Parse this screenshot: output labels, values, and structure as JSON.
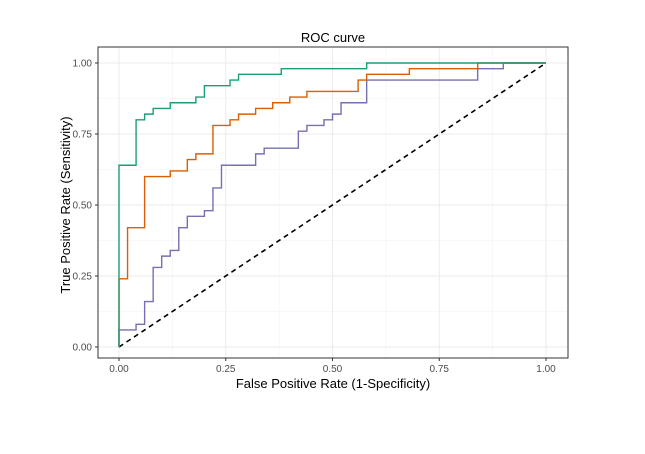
{
  "chart_data": {
    "type": "line",
    "title": "ROC curve",
    "xlabel": "False Positive Rate (1-Specificity)",
    "ylabel": "True Positive Rate (Sensitivity)",
    "xlim": [
      0,
      1
    ],
    "ylim": [
      0,
      1
    ],
    "x_ticks": [
      "0.00",
      "0.25",
      "0.50",
      "0.75",
      "1.00"
    ],
    "y_ticks": [
      "0.00",
      "0.25",
      "0.50",
      "0.75",
      "1.00"
    ],
    "grid": true,
    "legend": "none",
    "series": [
      {
        "color": "#1b9e77",
        "points": [
          [
            0,
            0
          ],
          [
            0,
            0.64
          ],
          [
            0.04,
            0.64
          ],
          [
            0.04,
            0.8
          ],
          [
            0.06,
            0.8
          ],
          [
            0.06,
            0.82
          ],
          [
            0.08,
            0.82
          ],
          [
            0.08,
            0.84
          ],
          [
            0.12,
            0.84
          ],
          [
            0.12,
            0.86
          ],
          [
            0.18,
            0.86
          ],
          [
            0.18,
            0.88
          ],
          [
            0.2,
            0.88
          ],
          [
            0.2,
            0.92
          ],
          [
            0.26,
            0.92
          ],
          [
            0.26,
            0.94
          ],
          [
            0.28,
            0.94
          ],
          [
            0.28,
            0.96
          ],
          [
            0.38,
            0.96
          ],
          [
            0.38,
            0.98
          ],
          [
            0.58,
            0.98
          ],
          [
            0.58,
            1.0
          ],
          [
            1.0,
            1.0
          ]
        ]
      },
      {
        "color": "#d95f02",
        "points": [
          [
            0,
            0
          ],
          [
            0,
            0.24
          ],
          [
            0.02,
            0.24
          ],
          [
            0.02,
            0.42
          ],
          [
            0.06,
            0.42
          ],
          [
            0.06,
            0.6
          ],
          [
            0.12,
            0.6
          ],
          [
            0.12,
            0.62
          ],
          [
            0.16,
            0.62
          ],
          [
            0.16,
            0.66
          ],
          [
            0.18,
            0.66
          ],
          [
            0.18,
            0.68
          ],
          [
            0.22,
            0.68
          ],
          [
            0.22,
            0.78
          ],
          [
            0.26,
            0.78
          ],
          [
            0.26,
            0.8
          ],
          [
            0.28,
            0.8
          ],
          [
            0.28,
            0.82
          ],
          [
            0.32,
            0.82
          ],
          [
            0.32,
            0.84
          ],
          [
            0.36,
            0.84
          ],
          [
            0.36,
            0.86
          ],
          [
            0.4,
            0.86
          ],
          [
            0.4,
            0.88
          ],
          [
            0.44,
            0.88
          ],
          [
            0.44,
            0.9
          ],
          [
            0.56,
            0.9
          ],
          [
            0.56,
            0.94
          ],
          [
            0.58,
            0.94
          ],
          [
            0.58,
            0.96
          ],
          [
            0.68,
            0.96
          ],
          [
            0.68,
            0.98
          ],
          [
            0.84,
            0.98
          ],
          [
            0.84,
            1.0
          ],
          [
            1.0,
            1.0
          ]
        ]
      },
      {
        "color": "#7570b3",
        "points": [
          [
            0,
            0
          ],
          [
            0,
            0.06
          ],
          [
            0.04,
            0.06
          ],
          [
            0.04,
            0.08
          ],
          [
            0.06,
            0.08
          ],
          [
            0.06,
            0.16
          ],
          [
            0.08,
            0.16
          ],
          [
            0.08,
            0.28
          ],
          [
            0.1,
            0.28
          ],
          [
            0.1,
            0.32
          ],
          [
            0.12,
            0.32
          ],
          [
            0.12,
            0.34
          ],
          [
            0.14,
            0.34
          ],
          [
            0.14,
            0.42
          ],
          [
            0.16,
            0.42
          ],
          [
            0.16,
            0.46
          ],
          [
            0.2,
            0.46
          ],
          [
            0.2,
            0.48
          ],
          [
            0.22,
            0.48
          ],
          [
            0.22,
            0.56
          ],
          [
            0.24,
            0.56
          ],
          [
            0.24,
            0.64
          ],
          [
            0.32,
            0.64
          ],
          [
            0.32,
            0.68
          ],
          [
            0.34,
            0.68
          ],
          [
            0.34,
            0.7
          ],
          [
            0.42,
            0.7
          ],
          [
            0.42,
            0.76
          ],
          [
            0.44,
            0.76
          ],
          [
            0.44,
            0.78
          ],
          [
            0.48,
            0.78
          ],
          [
            0.48,
            0.8
          ],
          [
            0.5,
            0.8
          ],
          [
            0.5,
            0.82
          ],
          [
            0.52,
            0.82
          ],
          [
            0.52,
            0.86
          ],
          [
            0.58,
            0.86
          ],
          [
            0.58,
            0.94
          ],
          [
            0.84,
            0.94
          ],
          [
            0.84,
            0.98
          ],
          [
            0.9,
            0.98
          ],
          [
            0.9,
            1.0
          ],
          [
            1.0,
            1.0
          ]
        ]
      }
    ],
    "reference_line": {
      "style": "dashed",
      "color": "#000000",
      "points": [
        [
          0,
          0
        ],
        [
          1,
          1
        ]
      ]
    }
  }
}
